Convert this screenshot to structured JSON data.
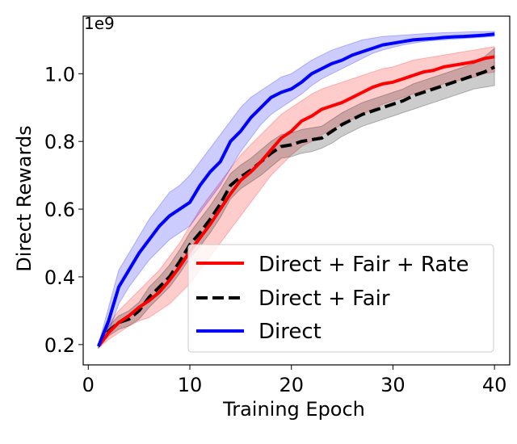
{
  "chart_data": {
    "type": "line",
    "title": "",
    "xlabel": "Training Epoch",
    "ylabel": "Direct Rewards",
    "y_offset_label": "1e9",
    "xlim": [
      -0.5,
      41.5
    ],
    "ylim": [
      0.14,
      1.17
    ],
    "xticks": [
      0,
      10,
      20,
      30,
      40
    ],
    "yticks": [
      0.2,
      0.4,
      0.6,
      0.8,
      1.0
    ],
    "ytick_labels": [
      "0.2",
      "0.4",
      "0.6",
      "0.8",
      "1.0"
    ],
    "grid": false,
    "legend_position": "lower-right",
    "x": [
      1,
      2,
      3,
      4,
      5,
      6,
      7,
      8,
      9,
      10,
      11,
      12,
      13,
      14,
      15,
      16,
      17,
      18,
      19,
      20,
      21,
      22,
      23,
      24,
      25,
      26,
      27,
      28,
      29,
      30,
      31,
      32,
      33,
      34,
      35,
      36,
      37,
      38,
      39,
      40
    ],
    "series": [
      {
        "name": "Direct + Fair + Rate",
        "color": "#ff0000",
        "line_style": "solid",
        "values": [
          0.195,
          0.235,
          0.265,
          0.285,
          0.31,
          0.33,
          0.355,
          0.39,
          0.43,
          0.475,
          0.515,
          0.555,
          0.6,
          0.645,
          0.685,
          0.71,
          0.74,
          0.775,
          0.81,
          0.83,
          0.86,
          0.875,
          0.895,
          0.905,
          0.915,
          0.93,
          0.945,
          0.96,
          0.97,
          0.975,
          0.985,
          0.995,
          1.005,
          1.01,
          1.02,
          1.025,
          1.03,
          1.035,
          1.045,
          1.05
        ],
        "lower": [
          0.19,
          0.215,
          0.235,
          0.255,
          0.27,
          0.28,
          0.3,
          0.32,
          0.35,
          0.38,
          0.42,
          0.46,
          0.5,
          0.54,
          0.58,
          0.62,
          0.66,
          0.7,
          0.73,
          0.76,
          0.785,
          0.8,
          0.82,
          0.835,
          0.85,
          0.865,
          0.88,
          0.895,
          0.91,
          0.92,
          0.93,
          0.94,
          0.95,
          0.96,
          0.97,
          0.975,
          0.985,
          0.99,
          1.0,
          1.005
        ],
        "upper": [
          0.2,
          0.26,
          0.3,
          0.33,
          0.36,
          0.39,
          0.42,
          0.46,
          0.5,
          0.55,
          0.6,
          0.64,
          0.68,
          0.72,
          0.76,
          0.79,
          0.82,
          0.85,
          0.88,
          0.9,
          0.92,
          0.94,
          0.955,
          0.965,
          0.975,
          0.985,
          0.995,
          1.005,
          1.015,
          1.02,
          1.03,
          1.04,
          1.045,
          1.05,
          1.055,
          1.06,
          1.065,
          1.07,
          1.075,
          1.08
        ]
      },
      {
        "name": "Direct + Fair",
        "color": "#000000",
        "line_style": "dashed",
        "values": [
          0.195,
          0.24,
          0.265,
          0.275,
          0.3,
          0.34,
          0.37,
          0.4,
          0.445,
          0.495,
          0.53,
          0.57,
          0.615,
          0.67,
          0.695,
          0.715,
          0.74,
          0.765,
          0.785,
          0.79,
          0.8,
          0.805,
          0.81,
          0.83,
          0.85,
          0.865,
          0.88,
          0.89,
          0.9,
          0.91,
          0.92,
          0.935,
          0.945,
          0.955,
          0.965,
          0.975,
          0.985,
          0.995,
          1.005,
          1.02
        ],
        "lower": [
          0.19,
          0.225,
          0.245,
          0.255,
          0.275,
          0.31,
          0.34,
          0.37,
          0.41,
          0.455,
          0.49,
          0.53,
          0.575,
          0.63,
          0.66,
          0.68,
          0.7,
          0.725,
          0.75,
          0.755,
          0.765,
          0.77,
          0.78,
          0.795,
          0.815,
          0.83,
          0.845,
          0.855,
          0.865,
          0.875,
          0.885,
          0.895,
          0.905,
          0.915,
          0.925,
          0.935,
          0.945,
          0.955,
          0.96,
          0.965
        ],
        "upper": [
          0.2,
          0.255,
          0.285,
          0.3,
          0.325,
          0.37,
          0.4,
          0.435,
          0.48,
          0.53,
          0.57,
          0.61,
          0.655,
          0.705,
          0.73,
          0.75,
          0.775,
          0.8,
          0.82,
          0.825,
          0.835,
          0.84,
          0.845,
          0.865,
          0.885,
          0.9,
          0.915,
          0.925,
          0.935,
          0.945,
          0.955,
          0.97,
          0.98,
          0.99,
          1.0,
          1.01,
          1.02,
          1.03,
          1.05,
          1.075
        ]
      },
      {
        "name": "Direct",
        "color": "#0000ff",
        "line_style": "solid",
        "values": [
          0.195,
          0.27,
          0.37,
          0.42,
          0.47,
          0.51,
          0.55,
          0.58,
          0.6,
          0.62,
          0.67,
          0.71,
          0.74,
          0.8,
          0.83,
          0.87,
          0.9,
          0.93,
          0.945,
          0.955,
          0.975,
          1.0,
          1.015,
          1.03,
          1.04,
          1.055,
          1.065,
          1.075,
          1.085,
          1.09,
          1.095,
          1.1,
          1.102,
          1.104,
          1.107,
          1.109,
          1.11,
          1.112,
          1.114,
          1.117
        ],
        "lower": [
          0.19,
          0.235,
          0.32,
          0.37,
          0.41,
          0.45,
          0.48,
          0.51,
          0.53,
          0.55,
          0.59,
          0.63,
          0.67,
          0.72,
          0.77,
          0.81,
          0.85,
          0.88,
          0.9,
          0.92,
          0.94,
          0.965,
          0.985,
          1.0,
          1.015,
          1.03,
          1.045,
          1.06,
          1.07,
          1.078,
          1.085,
          1.09,
          1.095,
          1.098,
          1.1,
          1.102,
          1.104,
          1.106,
          1.108,
          1.11
        ],
        "upper": [
          0.2,
          0.31,
          0.42,
          0.47,
          0.52,
          0.57,
          0.61,
          0.65,
          0.67,
          0.7,
          0.74,
          0.78,
          0.82,
          0.86,
          0.9,
          0.93,
          0.95,
          0.97,
          0.99,
          1.0,
          1.02,
          1.04,
          1.055,
          1.07,
          1.08,
          1.09,
          1.1,
          1.105,
          1.11,
          1.112,
          1.114,
          1.116,
          1.118,
          1.12,
          1.121,
          1.122,
          1.123,
          1.124,
          1.124,
          1.125
        ]
      }
    ]
  }
}
